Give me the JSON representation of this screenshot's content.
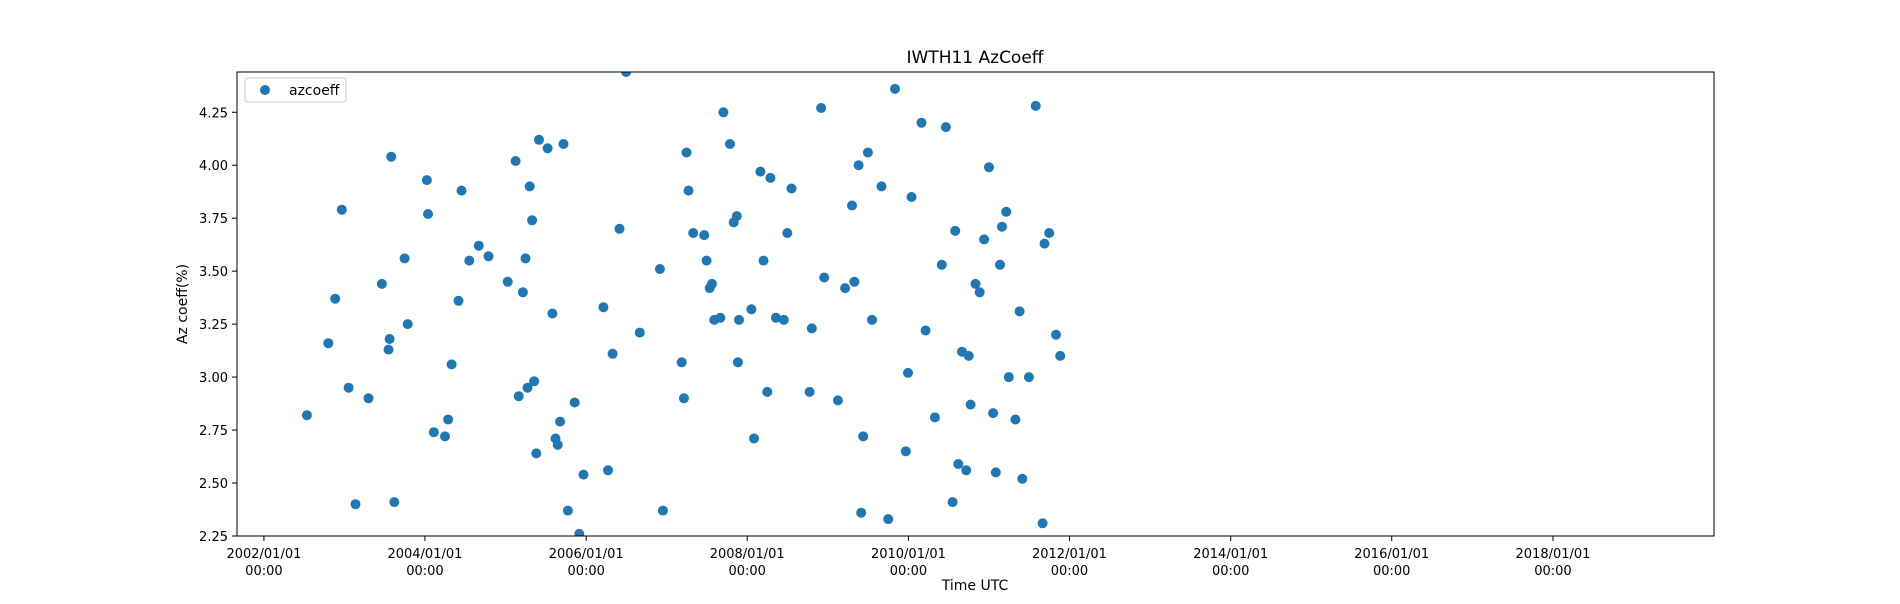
{
  "chart_data": {
    "type": "scatter",
    "title": "IWTH11 AzCoeff",
    "xlabel": "Time UTC",
    "ylabel": "Az coeff(%)",
    "xlim": [
      "2001-09-01",
      "2020-01-01"
    ],
    "ylim": [
      2.25,
      4.44
    ],
    "grid": false,
    "legend_position": "top-left",
    "y_ticks": [
      "2.25",
      "2.50",
      "2.75",
      "3.00",
      "3.25",
      "3.50",
      "3.75",
      "4.00",
      "4.25"
    ],
    "x_ticks": [
      {
        "date": "2002-01-01",
        "line1": "2002/01/01",
        "line2": "00:00"
      },
      {
        "date": "2004-01-01",
        "line1": "2004/01/01",
        "line2": "00:00"
      },
      {
        "date": "2006-01-01",
        "line1": "2006/01/01",
        "line2": "00:00"
      },
      {
        "date": "2008-01-01",
        "line1": "2008/01/01",
        "line2": "00:00"
      },
      {
        "date": "2010-01-01",
        "line1": "2010/01/01",
        "line2": "00:00"
      },
      {
        "date": "2012-01-01",
        "line1": "2012/01/01",
        "line2": "00:00"
      },
      {
        "date": "2014-01-01",
        "line1": "2014/01/01",
        "line2": "00:00"
      },
      {
        "date": "2016-01-01",
        "line1": "2016/01/01",
        "line2": "00:00"
      },
      {
        "date": "2018-01-01",
        "line1": "2018/01/01",
        "line2": "00:00"
      }
    ],
    "series": [
      {
        "name": "azcoeff",
        "color": "#1f77b4",
        "points": [
          {
            "x": "2002-07-15",
            "y": 2.82
          },
          {
            "x": "2002-10-20",
            "y": 3.16
          },
          {
            "x": "2002-11-20",
            "y": 3.37
          },
          {
            "x": "2002-12-20",
            "y": 3.79
          },
          {
            "x": "2003-01-20",
            "y": 2.95
          },
          {
            "x": "2003-02-20",
            "y": 2.4
          },
          {
            "x": "2003-04-20",
            "y": 2.9
          },
          {
            "x": "2003-06-20",
            "y": 3.44
          },
          {
            "x": "2003-07-20",
            "y": 3.13
          },
          {
            "x": "2003-07-25",
            "y": 3.18
          },
          {
            "x": "2003-08-01",
            "y": 4.04
          },
          {
            "x": "2003-08-15",
            "y": 2.41
          },
          {
            "x": "2003-10-01",
            "y": 3.56
          },
          {
            "x": "2003-10-15",
            "y": 3.25
          },
          {
            "x": "2004-01-10",
            "y": 3.93
          },
          {
            "x": "2004-01-15",
            "y": 3.77
          },
          {
            "x": "2004-02-10",
            "y": 2.74
          },
          {
            "x": "2004-04-01",
            "y": 2.72
          },
          {
            "x": "2004-04-15",
            "y": 2.8
          },
          {
            "x": "2004-05-01",
            "y": 3.06
          },
          {
            "x": "2004-06-01",
            "y": 3.36
          },
          {
            "x": "2004-06-15",
            "y": 3.88
          },
          {
            "x": "2004-07-20",
            "y": 3.55
          },
          {
            "x": "2004-09-01",
            "y": 3.62
          },
          {
            "x": "2004-10-15",
            "y": 3.57
          },
          {
            "x": "2005-01-10",
            "y": 3.45
          },
          {
            "x": "2005-02-15",
            "y": 4.02
          },
          {
            "x": "2005-03-01",
            "y": 2.91
          },
          {
            "x": "2005-03-20",
            "y": 3.4
          },
          {
            "x": "2005-04-01",
            "y": 3.56
          },
          {
            "x": "2005-04-10",
            "y": 2.95
          },
          {
            "x": "2005-04-20",
            "y": 3.9
          },
          {
            "x": "2005-05-01",
            "y": 3.74
          },
          {
            "x": "2005-05-10",
            "y": 2.98
          },
          {
            "x": "2005-05-20",
            "y": 2.64
          },
          {
            "x": "2005-06-01",
            "y": 4.12
          },
          {
            "x": "2005-07-10",
            "y": 4.08
          },
          {
            "x": "2005-08-01",
            "y": 3.3
          },
          {
            "x": "2005-08-15",
            "y": 2.71
          },
          {
            "x": "2005-08-25",
            "y": 2.68
          },
          {
            "x": "2005-09-05",
            "y": 2.79
          },
          {
            "x": "2005-09-20",
            "y": 4.1
          },
          {
            "x": "2005-10-10",
            "y": 2.37
          },
          {
            "x": "2005-11-10",
            "y": 2.88
          },
          {
            "x": "2005-12-01",
            "y": 2.26
          },
          {
            "x": "2005-12-20",
            "y": 2.54
          },
          {
            "x": "2006-03-20",
            "y": 3.33
          },
          {
            "x": "2006-04-10",
            "y": 2.56
          },
          {
            "x": "2006-05-01",
            "y": 3.11
          },
          {
            "x": "2006-06-01",
            "y": 3.7
          },
          {
            "x": "2006-07-01",
            "y": 4.44
          },
          {
            "x": "2006-09-01",
            "y": 3.21
          },
          {
            "x": "2006-12-01",
            "y": 3.51
          },
          {
            "x": "2006-12-15",
            "y": 2.37
          },
          {
            "x": "2007-03-10",
            "y": 3.07
          },
          {
            "x": "2007-03-20",
            "y": 2.9
          },
          {
            "x": "2007-04-01",
            "y": 4.06
          },
          {
            "x": "2007-04-10",
            "y": 3.88
          },
          {
            "x": "2007-05-01",
            "y": 3.68
          },
          {
            "x": "2007-06-20",
            "y": 3.67
          },
          {
            "x": "2007-07-01",
            "y": 3.55
          },
          {
            "x": "2007-07-15",
            "y": 3.42
          },
          {
            "x": "2007-07-25",
            "y": 3.44
          },
          {
            "x": "2007-08-05",
            "y": 3.27
          },
          {
            "x": "2007-09-01",
            "y": 3.28
          },
          {
            "x": "2007-09-15",
            "y": 4.25
          },
          {
            "x": "2007-10-15",
            "y": 4.1
          },
          {
            "x": "2007-11-01",
            "y": 3.73
          },
          {
            "x": "2007-11-15",
            "y": 3.76
          },
          {
            "x": "2007-11-20",
            "y": 3.07
          },
          {
            "x": "2007-11-25",
            "y": 3.27
          },
          {
            "x": "2008-01-20",
            "y": 3.32
          },
          {
            "x": "2008-02-01",
            "y": 2.71
          },
          {
            "x": "2008-03-01",
            "y": 3.97
          },
          {
            "x": "2008-03-15",
            "y": 3.55
          },
          {
            "x": "2008-04-01",
            "y": 2.93
          },
          {
            "x": "2008-04-15",
            "y": 3.94
          },
          {
            "x": "2008-05-10",
            "y": 3.28
          },
          {
            "x": "2008-06-15",
            "y": 3.27
          },
          {
            "x": "2008-07-01",
            "y": 3.68
          },
          {
            "x": "2008-07-20",
            "y": 3.89
          },
          {
            "x": "2008-10-10",
            "y": 2.93
          },
          {
            "x": "2008-10-20",
            "y": 3.23
          },
          {
            "x": "2008-12-01",
            "y": 4.27
          },
          {
            "x": "2008-12-15",
            "y": 3.47
          },
          {
            "x": "2009-02-15",
            "y": 2.89
          },
          {
            "x": "2009-03-20",
            "y": 3.42
          },
          {
            "x": "2009-04-20",
            "y": 3.81
          },
          {
            "x": "2009-05-01",
            "y": 3.45
          },
          {
            "x": "2009-05-20",
            "y": 4.0
          },
          {
            "x": "2009-06-01",
            "y": 2.36
          },
          {
            "x": "2009-06-10",
            "y": 2.72
          },
          {
            "x": "2009-07-01",
            "y": 4.06
          },
          {
            "x": "2009-07-20",
            "y": 3.27
          },
          {
            "x": "2009-09-01",
            "y": 3.9
          },
          {
            "x": "2009-10-01",
            "y": 2.33
          },
          {
            "x": "2009-11-01",
            "y": 4.36
          },
          {
            "x": "2009-12-20",
            "y": 2.65
          },
          {
            "x": "2009-12-30",
            "y": 3.02
          },
          {
            "x": "2010-01-15",
            "y": 3.85
          },
          {
            "x": "2010-03-01",
            "y": 4.2
          },
          {
            "x": "2010-03-20",
            "y": 3.22
          },
          {
            "x": "2010-05-01",
            "y": 2.81
          },
          {
            "x": "2010-06-01",
            "y": 3.53
          },
          {
            "x": "2010-06-20",
            "y": 4.18
          },
          {
            "x": "2010-07-20",
            "y": 2.41
          },
          {
            "x": "2010-08-01",
            "y": 3.69
          },
          {
            "x": "2010-08-15",
            "y": 2.59
          },
          {
            "x": "2010-09-01",
            "y": 3.12
          },
          {
            "x": "2010-09-20",
            "y": 2.56
          },
          {
            "x": "2010-10-01",
            "y": 3.1
          },
          {
            "x": "2010-10-10",
            "y": 2.87
          },
          {
            "x": "2010-11-01",
            "y": 3.44
          },
          {
            "x": "2010-11-20",
            "y": 3.4
          },
          {
            "x": "2010-12-10",
            "y": 3.65
          },
          {
            "x": "2011-01-01",
            "y": 3.99
          },
          {
            "x": "2011-01-20",
            "y": 2.83
          },
          {
            "x": "2011-02-01",
            "y": 2.55
          },
          {
            "x": "2011-02-20",
            "y": 3.53
          },
          {
            "x": "2011-03-01",
            "y": 3.71
          },
          {
            "x": "2011-03-20",
            "y": 3.78
          },
          {
            "x": "2011-04-01",
            "y": 3.0
          },
          {
            "x": "2011-05-01",
            "y": 2.8
          },
          {
            "x": "2011-05-20",
            "y": 3.31
          },
          {
            "x": "2011-06-01",
            "y": 2.52
          },
          {
            "x": "2011-07-01",
            "y": 3.0
          },
          {
            "x": "2011-08-01",
            "y": 4.28
          },
          {
            "x": "2011-09-01",
            "y": 2.31
          },
          {
            "x": "2011-09-10",
            "y": 3.63
          },
          {
            "x": "2011-10-01",
            "y": 3.68
          },
          {
            "x": "2011-11-01",
            "y": 3.2
          },
          {
            "x": "2011-11-20",
            "y": 3.1
          }
        ]
      }
    ]
  }
}
